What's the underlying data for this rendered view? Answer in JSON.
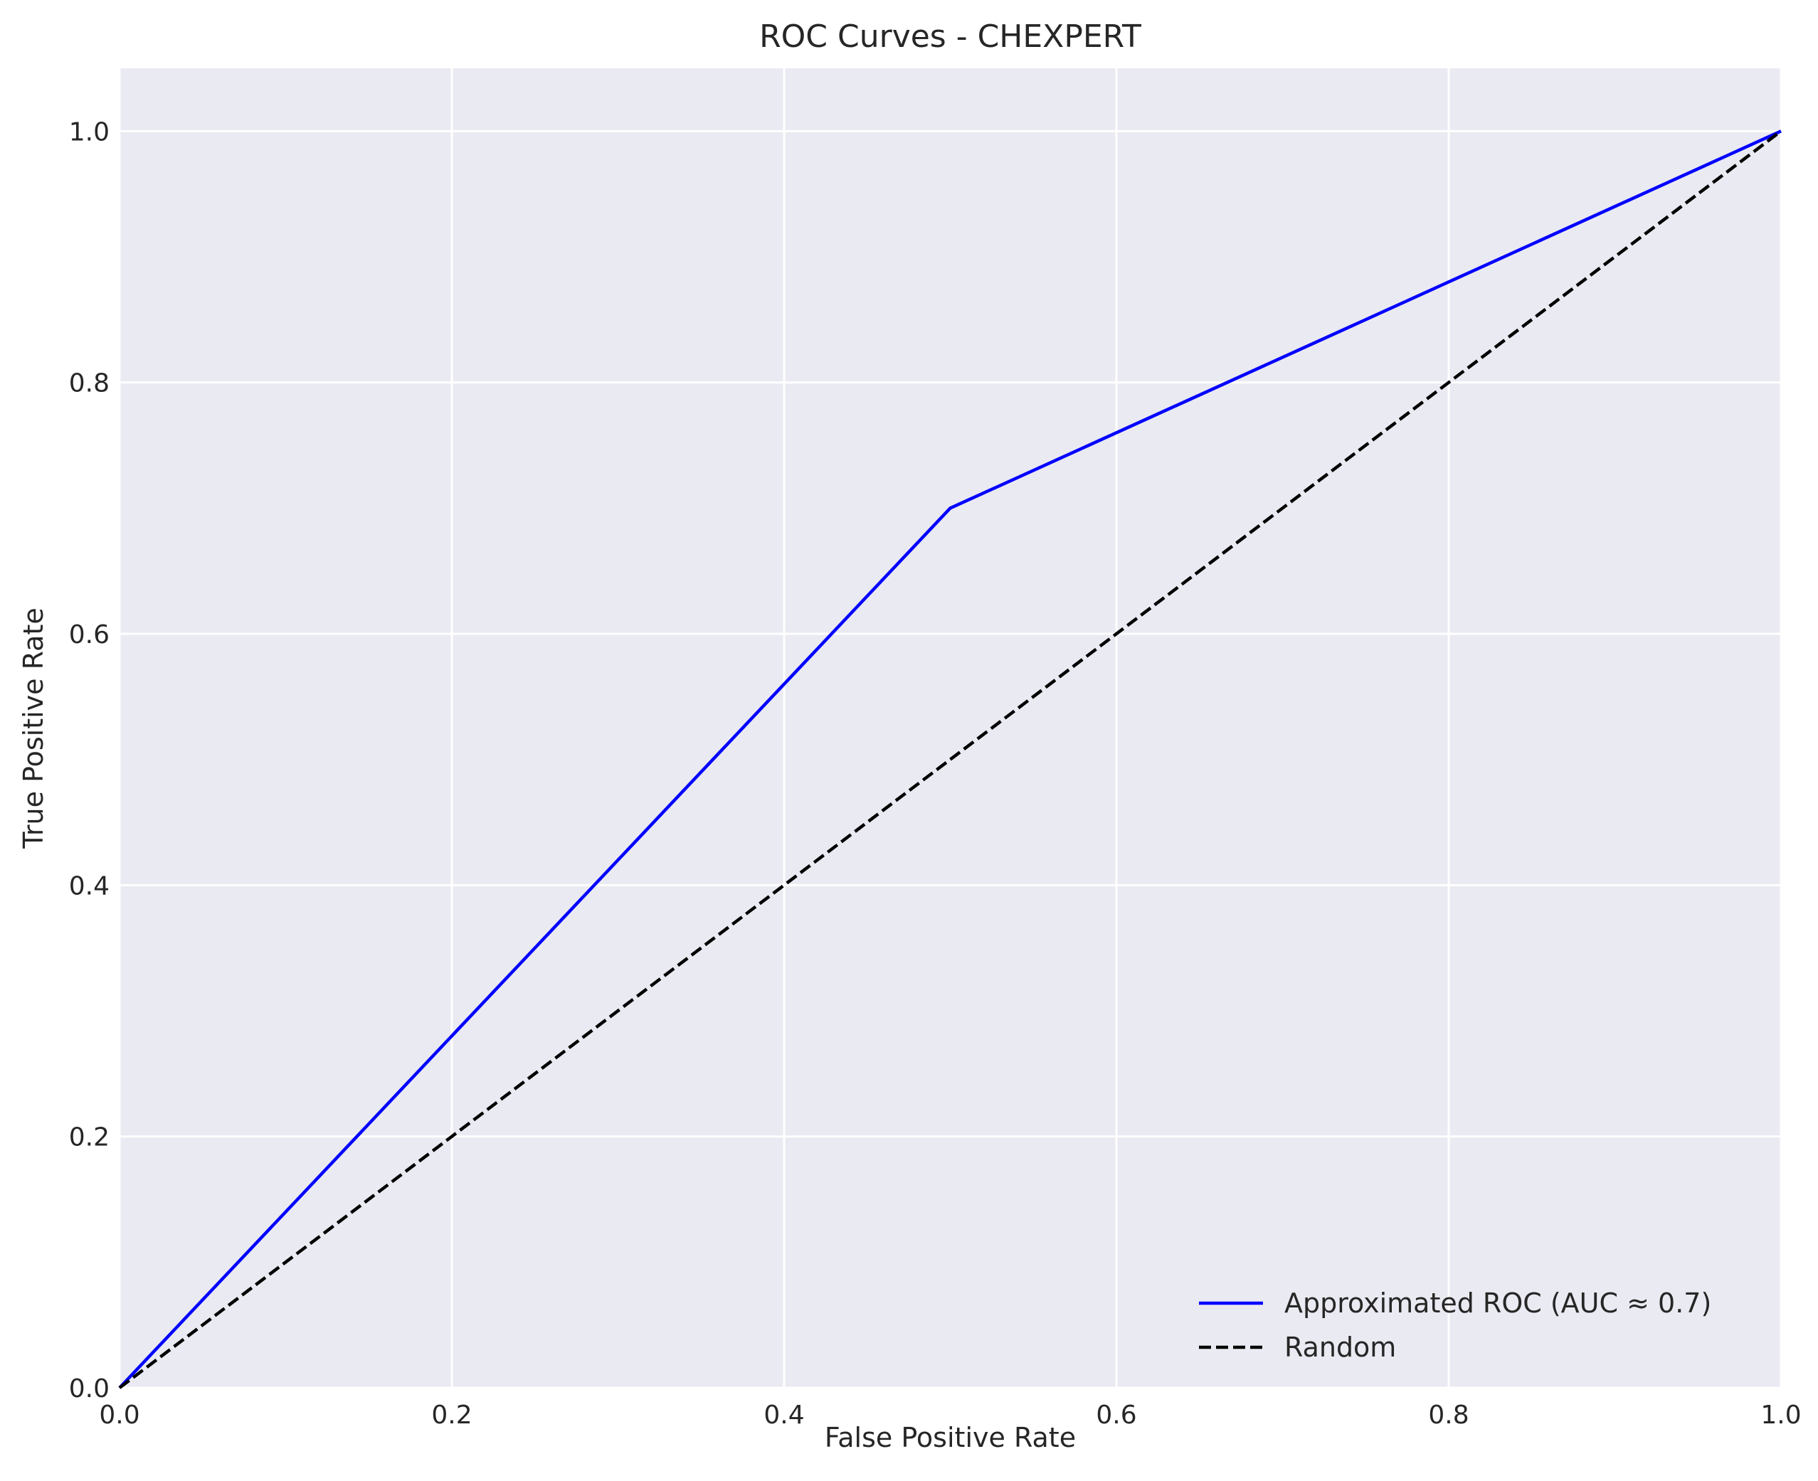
{
  "chart_data": {
    "type": "line",
    "title": "ROC Curves - CHEXPERT",
    "xlabel": "False Positive Rate",
    "ylabel": "True Positive Rate",
    "xlim": [
      0.0,
      1.0
    ],
    "ylim": [
      0.0,
      1.05
    ],
    "xticks": [
      0.0,
      0.2,
      0.4,
      0.6,
      0.8,
      1.0
    ],
    "yticks": [
      0.0,
      0.2,
      0.4,
      0.6,
      0.8,
      1.0
    ],
    "xtick_labels": [
      "0.0",
      "0.2",
      "0.4",
      "0.6",
      "0.8",
      "1.0"
    ],
    "ytick_labels": [
      "0.0",
      "0.2",
      "0.4",
      "0.6",
      "0.8",
      "1.0"
    ],
    "grid": true,
    "legend_position": "lower-right",
    "background_color": "#eaeaf2",
    "grid_color": "#ffffff",
    "series": [
      {
        "name": "Approximated ROC (AUC ≈ 0.7)",
        "x": [
          0.0,
          0.5,
          1.0
        ],
        "y": [
          0.0,
          0.7,
          1.0
        ],
        "color": "#0000ff",
        "style": "solid"
      },
      {
        "name": "Random",
        "x": [
          0.0,
          1.0
        ],
        "y": [
          0.0,
          1.0
        ],
        "color": "#000000",
        "style": "dashed"
      }
    ]
  }
}
